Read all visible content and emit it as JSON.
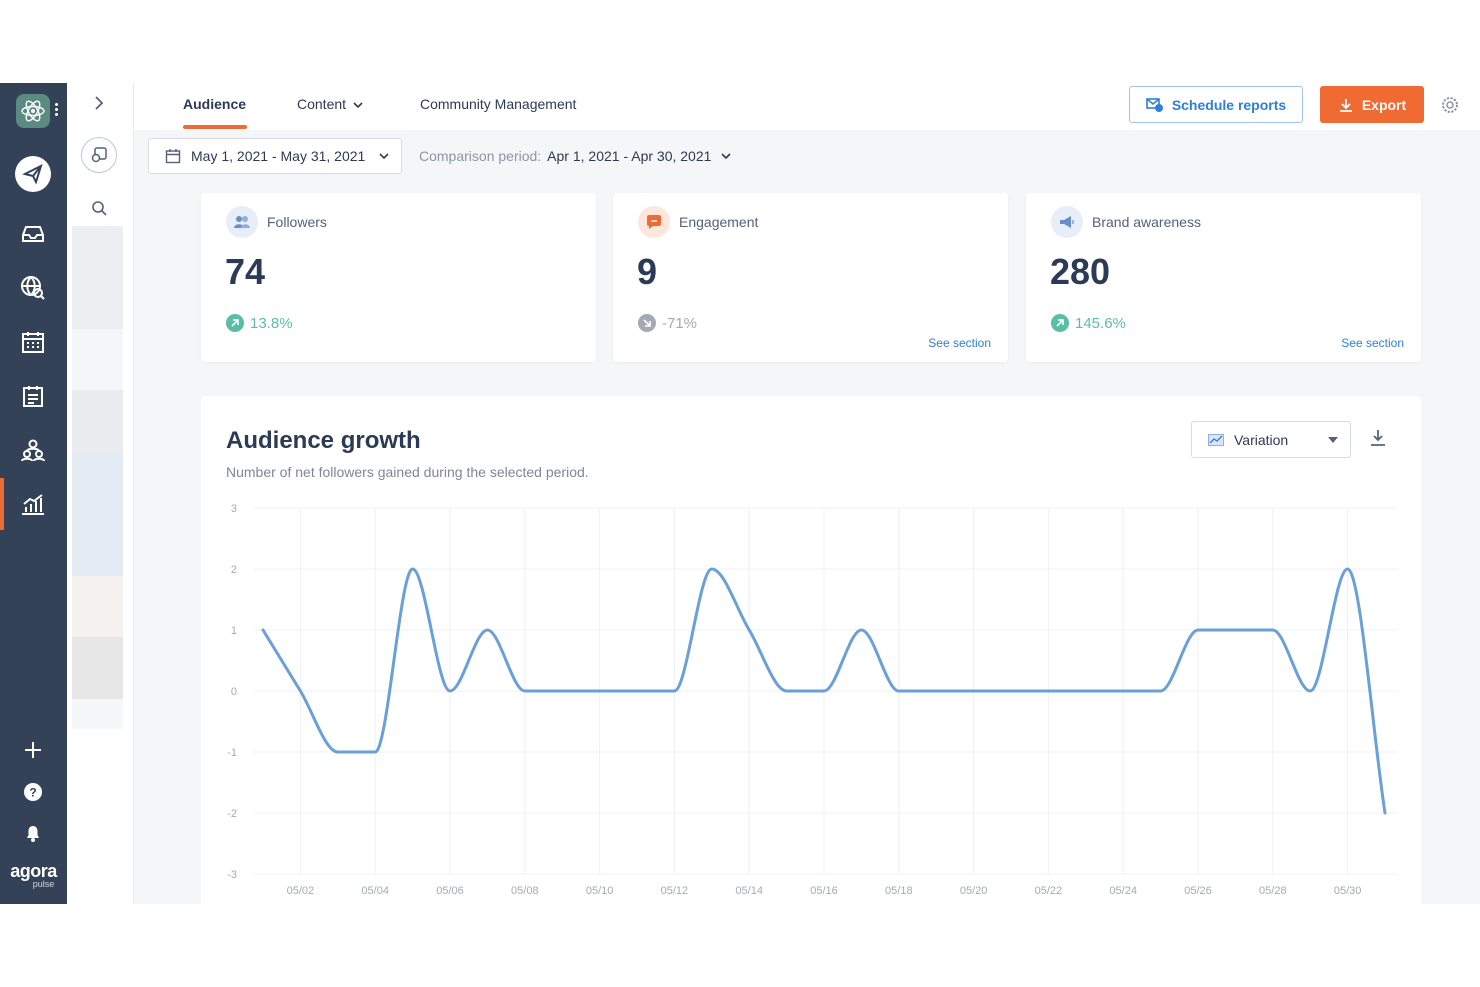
{
  "brand": {
    "name": "agora",
    "sub": "pulse"
  },
  "tabs": [
    {
      "label": "Audience",
      "active": true
    },
    {
      "label": "Content",
      "active": false
    },
    {
      "label": "Community Management",
      "active": false
    }
  ],
  "actions": {
    "schedule_label": "Schedule reports",
    "export_label": "Export"
  },
  "filter": {
    "date_range": "May 1, 2021 - May 31, 2021",
    "comparison_label": "Comparison period:",
    "comparison_value": "Apr 1, 2021 - Apr 30, 2021"
  },
  "cards": [
    {
      "label": "Followers",
      "value": "74",
      "change": "13.8%",
      "trend": "up",
      "see": ""
    },
    {
      "label": "Engagement",
      "value": "9",
      "change": "-71%",
      "trend": "down",
      "see": "See section"
    },
    {
      "label": "Brand awareness",
      "value": "280",
      "change": "145.6%",
      "trend": "up",
      "see": "See section"
    }
  ],
  "chart": {
    "title": "Audience growth",
    "subtitle": "Number of net followers gained during the selected period.",
    "view_label": "Variation"
  },
  "colors": {
    "accent": "#f06b34",
    "link": "#2f7fd9",
    "line": "#6a9fd8",
    "up": "#5bbca8",
    "down": "#a3aab5",
    "rail": "#344258"
  },
  "chart_data": {
    "type": "line",
    "x": [
      "05/01",
      "05/02",
      "05/03",
      "05/04",
      "05/05",
      "05/06",
      "05/07",
      "05/08",
      "05/09",
      "05/10",
      "05/11",
      "05/12",
      "05/13",
      "05/14",
      "05/15",
      "05/16",
      "05/17",
      "05/18",
      "05/19",
      "05/20",
      "05/21",
      "05/22",
      "05/23",
      "05/24",
      "05/25",
      "05/26",
      "05/27",
      "05/28",
      "05/29",
      "05/30",
      "05/31"
    ],
    "x_ticks": [
      "05/02",
      "05/04",
      "05/06",
      "05/08",
      "05/10",
      "05/12",
      "05/14",
      "05/16",
      "05/18",
      "05/20",
      "05/22",
      "05/24",
      "05/26",
      "05/28",
      "05/30"
    ],
    "series": [
      {
        "values": [
          1,
          0,
          -1,
          -1,
          2,
          0,
          1,
          0,
          0,
          0,
          0,
          0,
          2,
          1,
          0,
          0,
          1,
          0,
          0,
          0,
          0,
          0,
          0,
          0,
          0,
          1,
          1,
          1,
          0,
          2,
          -2
        ]
      }
    ],
    "ylim": [
      -3,
      3
    ],
    "y_ticks": [
      3,
      2,
      1,
      0,
      -1,
      -2,
      -3
    ],
    "grid": true
  }
}
